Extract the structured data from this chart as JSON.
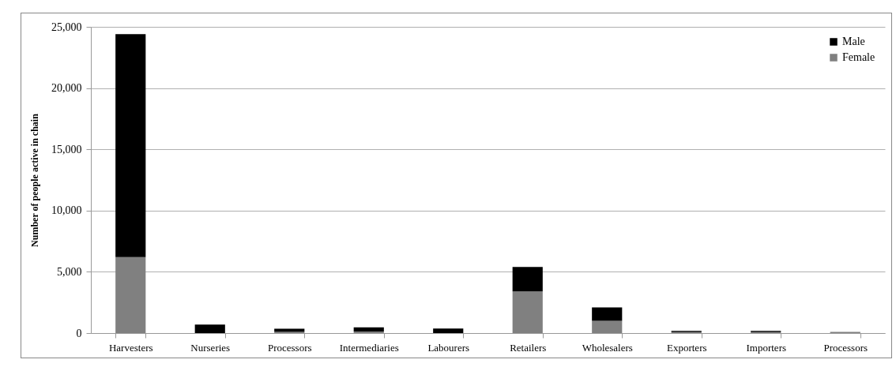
{
  "chart_data": {
    "type": "bar",
    "stacked": true,
    "ylabel": "Number of people active in chain",
    "categories": [
      "Harvesters",
      "Nurseries",
      "Processors",
      "Intermediaries",
      "Labourers",
      "Retailers",
      "Wholesalers",
      "Exporters",
      "Importers",
      "Processors"
    ],
    "series": [
      {
        "name": "Female",
        "color": "#808080",
        "values": [
          6200,
          null,
          100,
          130,
          null,
          3400,
          1000,
          80,
          80,
          90
        ]
      },
      {
        "name": "Male",
        "color": "#000000",
        "values": [
          18200,
          700,
          250,
          330,
          370,
          2000,
          1100,
          90,
          90,
          null
        ]
      }
    ],
    "ylim": [
      0,
      25000
    ],
    "yticks": [
      0,
      {
        "value": 5000,
        "label": "5,000"
      },
      {
        "value": 10000,
        "label": "10,000"
      },
      {
        "value": 15000,
        "label": "15,000"
      },
      {
        "value": 20000,
        "label": "20,000"
      },
      {
        "value": 25000,
        "label": "25,000"
      }
    ],
    "grid": "y",
    "legend": "top right"
  }
}
